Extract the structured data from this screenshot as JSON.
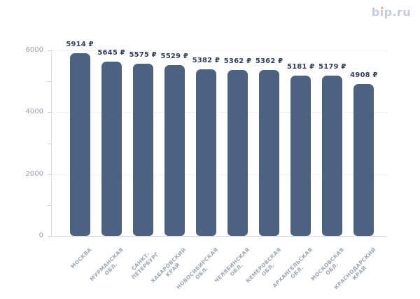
{
  "logo": {
    "pre": "b",
    "dotless_i": "ı",
    "post": "p.ru",
    "text": "bip.ru",
    "color": "#c7cbd8",
    "dot_color": "#f2926f"
  },
  "chart_data": {
    "type": "bar",
    "title": "",
    "categories": [
      "МОСКВА",
      "МУРМАНСКАЯ ОБЛ.",
      "САНКТ-ПЕТЕРБУРГ",
      "ХАБАРОВСКИЙ КРАЙ",
      "НОВОСИБИРСКАЯ ОБЛ.",
      "ЧЕЛЯБИНСКАЯ ОБЛ.",
      "КЕМЕРОВСКАЯ ОБЛ.",
      "АРХАНГЕЛЬСКАЯ ОБЛ.",
      "МОСКОВСКАЯ ОБЛ.",
      "КРАСНОДАРСКИЙ КРАЙ"
    ],
    "category_lines": [
      [
        "МОСКВА"
      ],
      [
        "МУРМАНСКАЯ",
        "ОБЛ."
      ],
      [
        "САНКТ-",
        "ПЕТЕРБУРГ"
      ],
      [
        "ХАБАРОВСКИЙ",
        "КРАЙ"
      ],
      [
        "НОВОСИБИРСКАЯ",
        "ОБЛ."
      ],
      [
        "ЧЕЛЯБИНСКАЯ",
        "ОБЛ."
      ],
      [
        "КЕМЕРОВСКАЯ",
        "ОБЛ."
      ],
      [
        "АРХАНГЕЛЬСКАЯ",
        "ОБЛ."
      ],
      [
        "МОСКОВСКАЯ",
        "ОБЛ."
      ],
      [
        "КРАСНОДАРСКИЙ",
        "КРАЙ"
      ]
    ],
    "values": [
      5914,
      5645,
      5575,
      5529,
      5382,
      5362,
      5362,
      5181,
      5179,
      4908
    ],
    "value_labels": [
      "5914 ₽",
      "5645 ₽",
      "5575 ₽",
      "5529 ₽",
      "5382 ₽",
      "5362 ₽",
      "5362 ₽",
      "5181 ₽",
      "5179 ₽",
      "4908 ₽"
    ],
    "unit": "₽",
    "xlabel": "",
    "ylabel": "",
    "ylim": [
      0,
      6000
    ],
    "y_tick_values": [
      0,
      2000,
      4000,
      6000
    ],
    "y_tick_labels": [
      "0",
      "2000",
      "4000",
      "6000"
    ],
    "minor_tick_step": 1000,
    "grid_horizontal_dotted_at": [
      2000,
      4000,
      6000
    ],
    "legend_position": "none",
    "colors": {
      "bar": "#4d6180",
      "value_label": "#33405e",
      "y_axis_label": "#9aa1ae",
      "x_axis_label": "#a0a7b3",
      "axis_line": "#d8dce3",
      "tick_mark": "#cfd4dc",
      "grid_line": "#e4e7ed"
    }
  }
}
